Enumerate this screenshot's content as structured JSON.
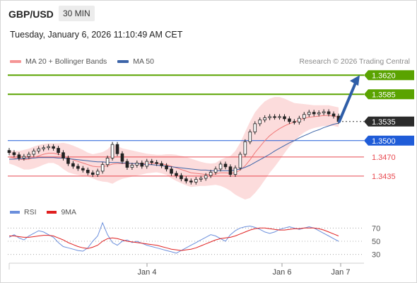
{
  "header": {
    "symbol": "GBP/USD",
    "timeframe": "30 MIN",
    "datetime": "Tuesday, January 6, 2026 11:10:49 AM CET",
    "credit": "Research © 2026 Trading Central"
  },
  "legend": {
    "ma20_bb": "MA 20 + Bollinger Bands",
    "ma50": "MA 50",
    "rsi": "RSI",
    "ma9": "9MA"
  },
  "colors": {
    "green_level": "#5aa300",
    "blue_level": "#1f5cd8",
    "red_level": "#e8484f",
    "current_price": "#2b2b2b",
    "bollinger_fill": "#fbd0d0",
    "ma20": "#f07a7a",
    "ma50": "#3c64a8",
    "rsi": "#6b8fdc",
    "rsi_ma9": "#e02020",
    "arrow": "#2f5ea8",
    "up_candle": "#ffffff",
    "down_candle": "#222222"
  },
  "chart_data": {
    "type": "candlestick",
    "title": "GBP/USD 30 MIN",
    "ylim": [
      1.3405,
      1.3645
    ],
    "price_levels": [
      {
        "label": "1.3620",
        "value": 1.362,
        "kind": "resistance"
      },
      {
        "label": "1.3585",
        "value": 1.3585,
        "kind": "resistance"
      },
      {
        "label": "1.3535",
        "value": 1.3535,
        "kind": "current"
      },
      {
        "label": "1.3500",
        "value": 1.35,
        "kind": "pivot"
      },
      {
        "label": "1.3470",
        "value": 1.347,
        "kind": "support"
      },
      {
        "label": "1.3435",
        "value": 1.3435,
        "kind": "support"
      }
    ],
    "x_ticks": [
      "Jan 4",
      "Jan 6",
      "Jan 7"
    ],
    "close_series": [
      1.3478,
      1.3474,
      1.3468,
      1.3471,
      1.3475,
      1.3481,
      1.3485,
      1.3487,
      1.3489,
      1.3486,
      1.3478,
      1.3468,
      1.3458,
      1.3453,
      1.3449,
      1.3446,
      1.3441,
      1.3438,
      1.3444,
      1.3456,
      1.3468,
      1.3493,
      1.3476,
      1.3462,
      1.3451,
      1.3455,
      1.3459,
      1.3453,
      1.3462,
      1.346,
      1.3458,
      1.3454,
      1.3448,
      1.344,
      1.3436,
      1.343,
      1.3426,
      1.3424,
      1.3429,
      1.3431,
      1.3436,
      1.3442,
      1.3448,
      1.3457,
      1.3452,
      1.3438,
      1.345,
      1.3475,
      1.3498,
      1.3516,
      1.3531,
      1.3538,
      1.3542,
      1.3544,
      1.3543,
      1.3544,
      1.354,
      1.3535,
      1.3534,
      1.3541,
      1.3548,
      1.3552,
      1.3549,
      1.3551,
      1.3553,
      1.3549,
      1.3545,
      1.3535
    ],
    "ma20": [
      1.347,
      1.3468,
      1.3466,
      1.3465,
      1.3466,
      1.3469,
      1.3472,
      1.3475,
      1.3477,
      1.3477,
      1.3475,
      1.3472,
      1.3468,
      1.3465,
      1.3462,
      1.3459,
      1.3456,
      1.3453,
      1.3452,
      1.3452,
      1.3454,
      1.3457,
      1.3458,
      1.3458,
      1.3458,
      1.3458,
      1.3458,
      1.3458,
      1.3458,
      1.3458,
      1.3458,
      1.3457,
      1.3456,
      1.3453,
      1.345,
      1.3447,
      1.3444,
      1.3441,
      1.344,
      1.3439,
      1.3438,
      1.3438,
      1.3439,
      1.3441,
      1.3441,
      1.344,
      1.3441,
      1.3446,
      1.3454,
      1.3465,
      1.3478,
      1.3489,
      1.35,
      1.3509,
      1.3516,
      1.3522,
      1.3527,
      1.3531,
      1.3534,
      1.3538,
      1.3541,
      1.3543,
      1.3544,
      1.3545,
      1.3546,
      1.3546,
      1.3545,
      1.3543
    ],
    "ma50": [
      1.3466,
      1.3466,
      1.3467,
      1.3467,
      1.3468,
      1.3468,
      1.3469,
      1.3469,
      1.3469,
      1.3469,
      1.3468,
      1.3468,
      1.3467,
      1.3466,
      1.3465,
      1.3464,
      1.3463,
      1.3462,
      1.3461,
      1.3461,
      1.346,
      1.346,
      1.346,
      1.3459,
      1.3459,
      1.3458,
      1.3458,
      1.3457,
      1.3456,
      1.3456,
      1.3455,
      1.3454,
      1.3453,
      1.3452,
      1.3451,
      1.345,
      1.3449,
      1.3448,
      1.3447,
      1.3446,
      1.3446,
      1.3445,
      1.3445,
      1.3445,
      1.3445,
      1.3445,
      1.3446,
      1.3448,
      1.3451,
      1.3455,
      1.346,
      1.3465,
      1.347,
      1.3475,
      1.3481,
      1.3486,
      1.3491,
      1.3496,
      1.35,
      1.3505,
      1.3509,
      1.3513,
      1.3517,
      1.352,
      1.3524,
      1.3527,
      1.353,
      1.3532
    ],
    "bb_width": [
      0.0012,
      0.0013,
      0.0015,
      0.0018,
      0.0019,
      0.002,
      0.002,
      0.0019,
      0.0018,
      0.0018,
      0.002,
      0.0024,
      0.0026,
      0.0026,
      0.0025,
      0.0024,
      0.0022,
      0.0022,
      0.0025,
      0.0027,
      0.003,
      0.0036,
      0.0032,
      0.0028,
      0.0026,
      0.0024,
      0.0022,
      0.002,
      0.0018,
      0.0017,
      0.0016,
      0.0017,
      0.0019,
      0.0022,
      0.0024,
      0.0025,
      0.0026,
      0.0026,
      0.0024,
      0.0022,
      0.0021,
      0.002,
      0.002,
      0.0024,
      0.0028,
      0.0032,
      0.004,
      0.005,
      0.0062,
      0.007,
      0.0074,
      0.0074,
      0.0072,
      0.0068,
      0.0064,
      0.0058,
      0.005,
      0.0042,
      0.0035,
      0.003,
      0.0026,
      0.0023,
      0.0021,
      0.002,
      0.0019,
      0.0019,
      0.0018,
      0.0018
    ],
    "forecast_arrow": {
      "from": 1.3535,
      "to": 1.362
    },
    "rsi": {
      "levels": [
        70,
        50,
        30
      ],
      "ylim": [
        20,
        80
      ],
      "rsi_series": [
        56,
        60,
        55,
        52,
        58,
        62,
        66,
        64,
        60,
        56,
        48,
        42,
        40,
        38,
        36,
        35,
        40,
        50,
        58,
        78,
        60,
        48,
        44,
        50,
        52,
        48,
        50,
        47,
        44,
        42,
        40,
        38,
        36,
        34,
        32,
        36,
        40,
        44,
        48,
        52,
        56,
        60,
        58,
        54,
        50,
        60,
        66,
        70,
        72,
        73,
        71,
        68,
        64,
        62,
        64,
        68,
        70,
        72,
        70,
        68,
        70,
        72,
        70,
        66,
        62,
        58,
        54,
        50
      ],
      "ma9_series": [
        58,
        58,
        57,
        56,
        56,
        57,
        58,
        59,
        59,
        58,
        55,
        52,
        48,
        45,
        42,
        40,
        39,
        41,
        44,
        50,
        54,
        55,
        54,
        52,
        50,
        49,
        48,
        47,
        46,
        45,
        44,
        42,
        40,
        38,
        37,
        36,
        37,
        38,
        40,
        43,
        46,
        49,
        52,
        54,
        55,
        56,
        58,
        61,
        64,
        67,
        69,
        70,
        70,
        69,
        68,
        67,
        67,
        68,
        69,
        69,
        70,
        70,
        70,
        69,
        67,
        64,
        61,
        58
      ]
    }
  }
}
